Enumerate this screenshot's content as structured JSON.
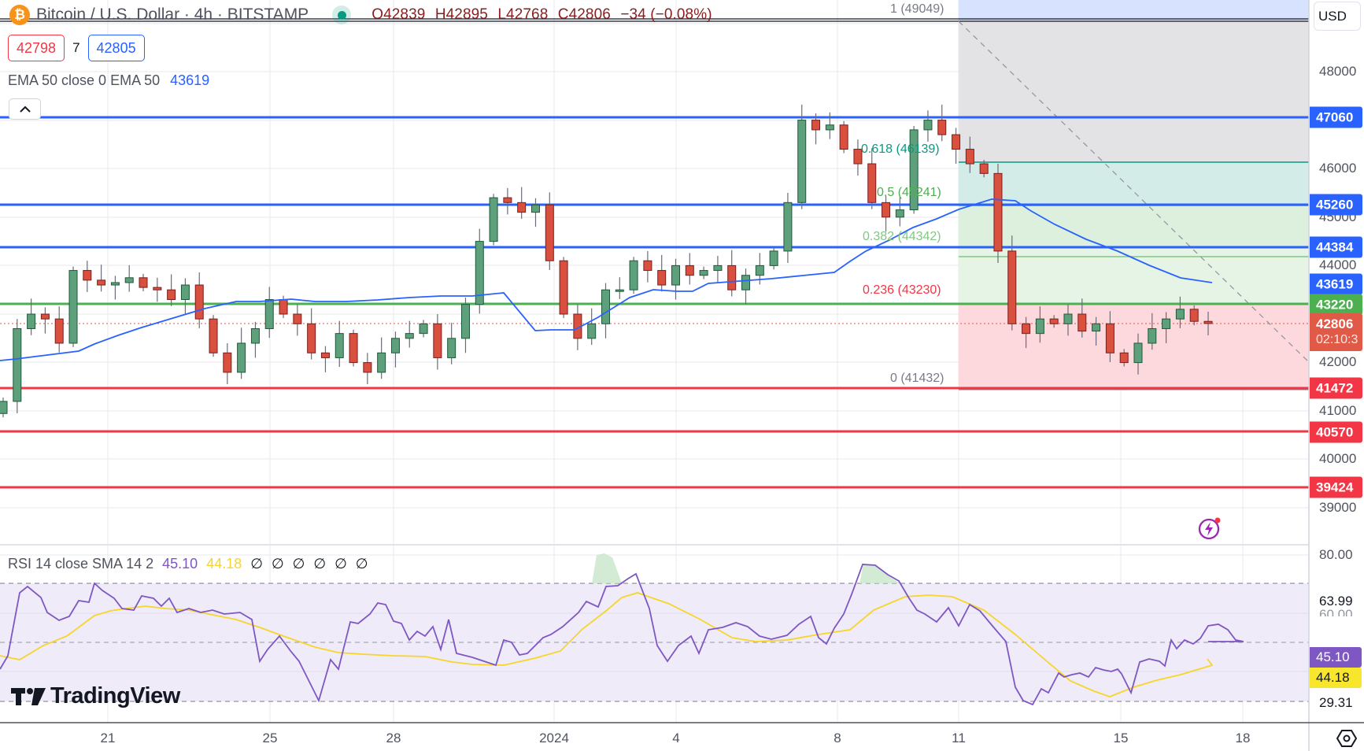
{
  "header": {
    "symbol_icon": "bitcoin-icon",
    "symbol_icon_glyph": "₿",
    "title": "Bitcoin / U.S. Dollar · 4h · BITSTAMP",
    "market_status": "open",
    "ohlc": {
      "open": "O42839",
      "high": "H42895",
      "low": "L42768",
      "close": "C42806",
      "change": "−34 (−0.08%)"
    }
  },
  "trade": {
    "sell_price": "42798",
    "spread": "7",
    "buy_price": "42805"
  },
  "indicators": {
    "ema": {
      "label": "EMA 50 close 0 EMA 50",
      "value": "43619",
      "color": "#2962ff"
    },
    "rsi": {
      "label": "RSI 14 close SMA 14 2",
      "rsi_value": "45.10",
      "sma_value": "44.18",
      "na_values": [
        "∅",
        "∅",
        "∅",
        "∅",
        "∅",
        "∅"
      ],
      "rsi_color": "#7e57c2",
      "sma_color": "#f7d52a"
    }
  },
  "collapse_button": {
    "icon": "chevron-up-icon",
    "glyph": "⌃"
  },
  "price_axis": {
    "currency": "USD",
    "ticks": [
      "48000",
      "46000",
      "45000",
      "44000",
      "42000",
      "41000",
      "40000",
      "39000"
    ],
    "tags": [
      {
        "value": "47060",
        "color": "#2962ff"
      },
      {
        "value": "45260",
        "color": "#2962ff"
      },
      {
        "value": "44384",
        "color": "#2962ff"
      },
      {
        "value": "43619",
        "color": "#2962ff"
      },
      {
        "value": "43220",
        "color": "#4caf50"
      },
      {
        "value": "41472",
        "color": "#f23645"
      },
      {
        "value": "40570",
        "color": "#f23645"
      },
      {
        "value": "39424",
        "color": "#f23645"
      }
    ],
    "last_price": {
      "value": "42806",
      "countdown": "02:10:3",
      "color": "#e05a47"
    }
  },
  "rsi_axis": {
    "ticks": [
      "80.00",
      "63.99",
      "60.00",
      "29.31"
    ],
    "rsi_tag": {
      "value": "45.10",
      "bg": "#7e57c2",
      "fg": "#ffffff"
    },
    "sma_tag": {
      "value": "44.18",
      "bg": "#f7e62b",
      "fg": "#131722"
    }
  },
  "time_axis": {
    "labels": [
      "21",
      "25",
      "28",
      "2024",
      "4",
      "8",
      "11",
      "15",
      "18"
    ]
  },
  "fibonacci": {
    "levels": [
      {
        "label": "1 (49049)",
        "color": "#787b86"
      },
      {
        "label": "0.618 (46139)",
        "color": "#089981"
      },
      {
        "label": "0.5 (45241)",
        "color": "#4caf50"
      },
      {
        "label": "0.382 (44342)",
        "color": "#81c784"
      },
      {
        "label": "0.236 (43230)",
        "color": "#f23645"
      },
      {
        "label": "0 (41432)",
        "color": "#787b86"
      }
    ]
  },
  "branding": {
    "logo_text": "TradingView"
  },
  "chart_data": [
    {
      "type": "candlestick",
      "title": "Bitcoin / U.S. Dollar · 4h · BITSTAMP",
      "xlabel": "",
      "ylabel": "USD",
      "ylim": [
        38600,
        49200
      ],
      "x_ticks": [
        "21",
        "25",
        "28",
        "2024",
        "4",
        "8",
        "11",
        "15",
        "18"
      ],
      "y_ticks": [
        39000,
        40000,
        41000,
        42000,
        44000,
        45000,
        46000,
        48000
      ],
      "grid": true,
      "last": {
        "open": 42839,
        "high": 42895,
        "low": 42768,
        "close": 42806,
        "change": -34,
        "change_pct": -0.08
      },
      "horizontal_levels": {
        "resistance_blue": [
          47060,
          45260,
          44384
        ],
        "pivot_green": [
          43220
        ],
        "support_red": [
          41472,
          40570,
          39424
        ]
      },
      "series": [
        {
          "name": "EMA 50",
          "last_value": 43619,
          "color": "#2962ff"
        }
      ],
      "fibonacci_retracement": [
        {
          "level": 1,
          "price": 49049
        },
        {
          "level": 0.618,
          "price": 46139
        },
        {
          "level": 0.5,
          "price": 45241
        },
        {
          "level": 0.382,
          "price": 44342
        },
        {
          "level": 0.236,
          "price": 43230
        },
        {
          "level": 0,
          "price": 41432
        }
      ],
      "close_path_approx": [
        41200,
        42700,
        43000,
        42900,
        42400,
        43900,
        43700,
        43600,
        43650,
        43750,
        43550,
        43500,
        43300,
        43600,
        42900,
        42200,
        41800,
        42400,
        42700,
        43300,
        43000,
        42800,
        42200,
        42100,
        42600,
        42000,
        41800,
        42200,
        42500,
        42600,
        42800,
        42100,
        42500,
        43200,
        44500,
        45400,
        45300,
        45100,
        45250,
        44100,
        43000,
        42500,
        42800,
        43500,
        43500,
        44100,
        43900,
        43600,
        44000,
        43800,
        43900,
        44000,
        43500,
        43800,
        44000,
        44300,
        45300,
        47000,
        46800,
        46900,
        46400,
        46100,
        45300,
        45000,
        45150,
        46800,
        47000,
        46700,
        46400,
        46100,
        45900,
        44300,
        42800,
        42600,
        42900,
        42800,
        43000,
        42650,
        42800,
        42200,
        42000,
        42400,
        42700,
        42900,
        43100,
        42850,
        42806
      ]
    },
    {
      "type": "line",
      "title": "RSI 14 close SMA 14 2",
      "ylim": [
        22,
        84
      ],
      "y_ticks": [
        80.0,
        63.99,
        60.0,
        29.31
      ],
      "bands": {
        "upper": 70,
        "middle": 50,
        "lower": 30
      },
      "series": [
        {
          "name": "RSI 14",
          "last_value": 45.1,
          "color": "#7e57c2"
        },
        {
          "name": "SMA 14",
          "last_value": 44.18,
          "color": "#f7d52a"
        }
      ]
    }
  ]
}
